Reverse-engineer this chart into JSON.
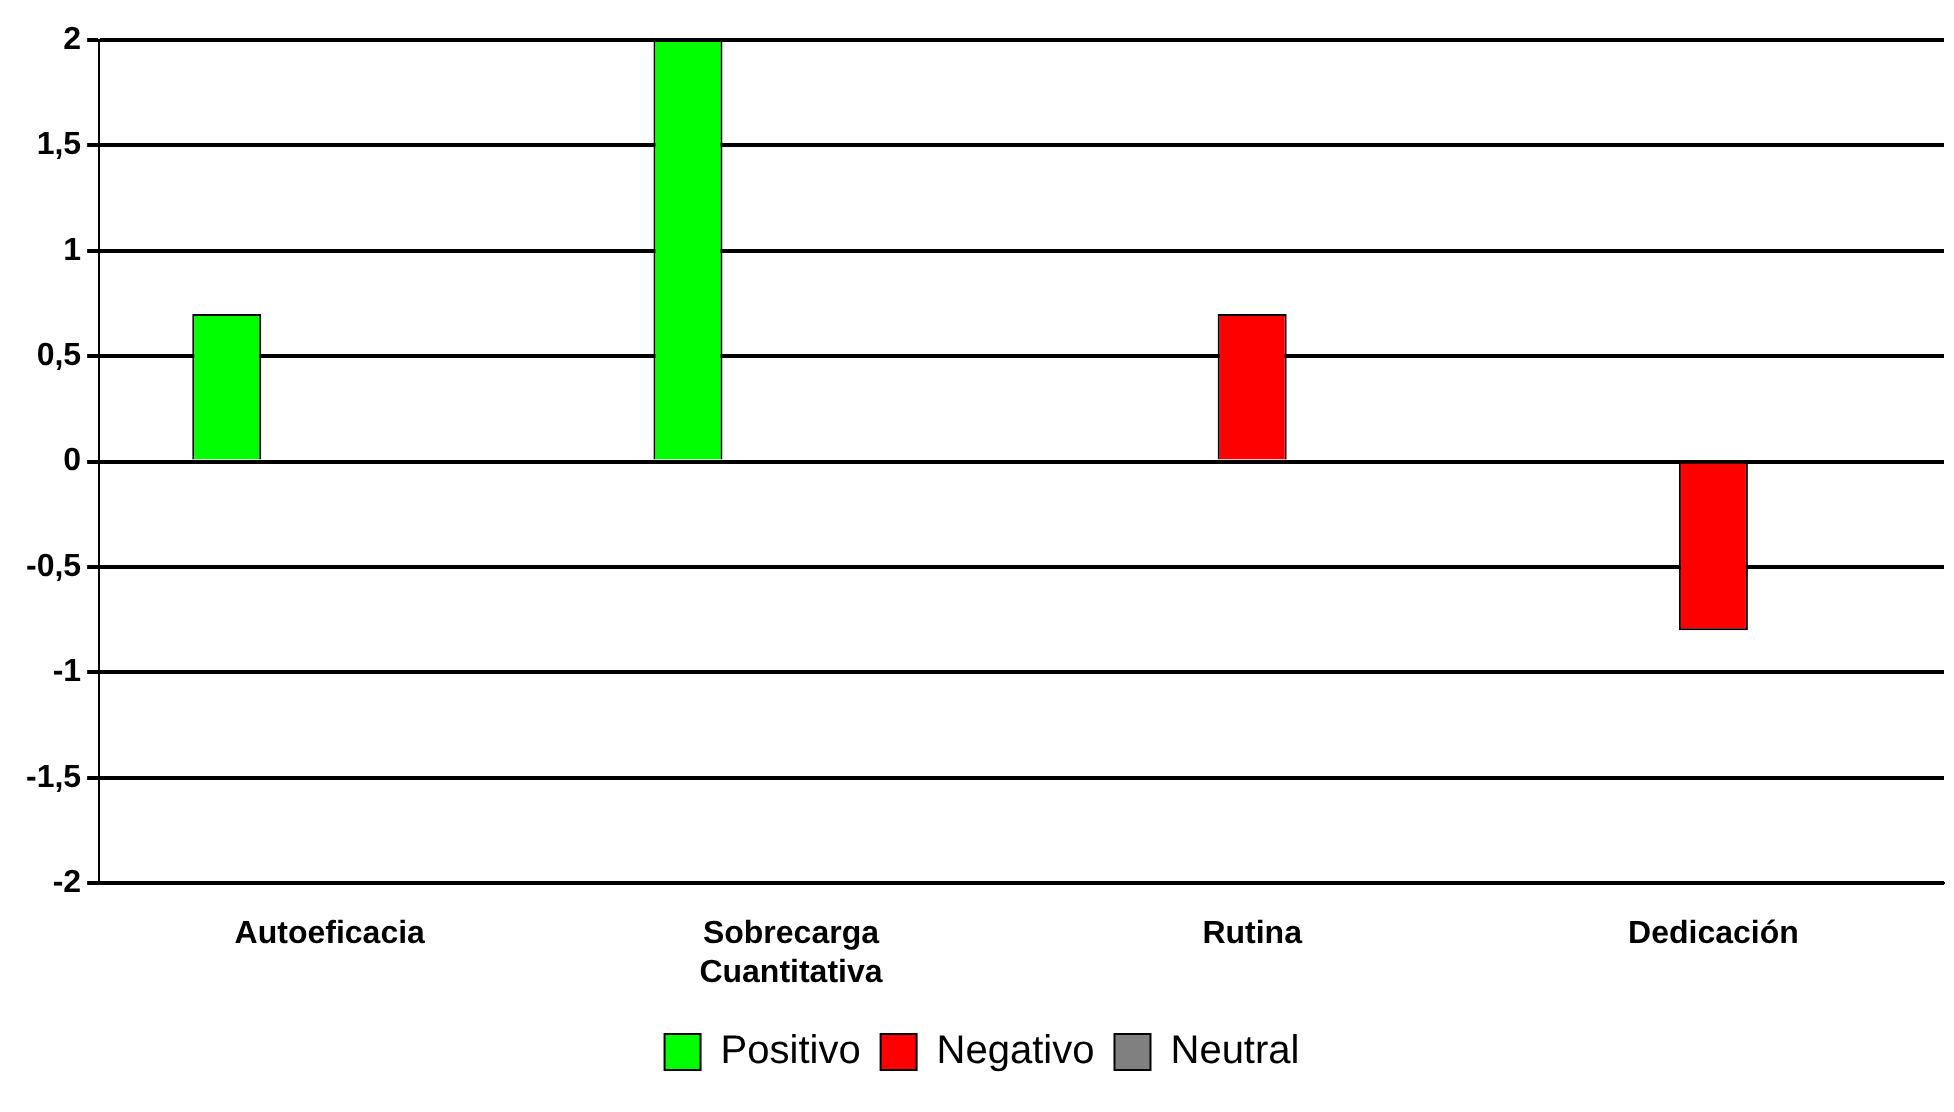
{
  "chart_data": {
    "type": "bar",
    "categories": [
      "Autoeficacia",
      "Sobrecarga Cuantitativa",
      "Rutina",
      "Dedicación"
    ],
    "series": [
      {
        "name": "Positivo",
        "color": "#00ff00",
        "values": [
          0.7,
          2,
          null,
          null
        ]
      },
      {
        "name": "Negativo",
        "color": "#ff0000",
        "values": [
          null,
          null,
          0.7,
          -0.8
        ]
      },
      {
        "name": "Neutral",
        "color": "#808080",
        "values": [
          null,
          null,
          null,
          null
        ]
      }
    ],
    "ylim": [
      -2,
      2
    ],
    "yticks": [
      {
        "value": -2,
        "label": "-2"
      },
      {
        "value": -1.5,
        "label": "-1,5"
      },
      {
        "value": -1,
        "label": "-1"
      },
      {
        "value": -0.5,
        "label": "-0,5"
      },
      {
        "value": 0,
        "label": "0"
      },
      {
        "value": 0.5,
        "label": "0,5"
      },
      {
        "value": 1,
        "label": "1"
      },
      {
        "value": 1.5,
        "label": "1,5"
      },
      {
        "value": 2,
        "label": "2"
      }
    ],
    "grid": "y",
    "legend": "bottom"
  }
}
